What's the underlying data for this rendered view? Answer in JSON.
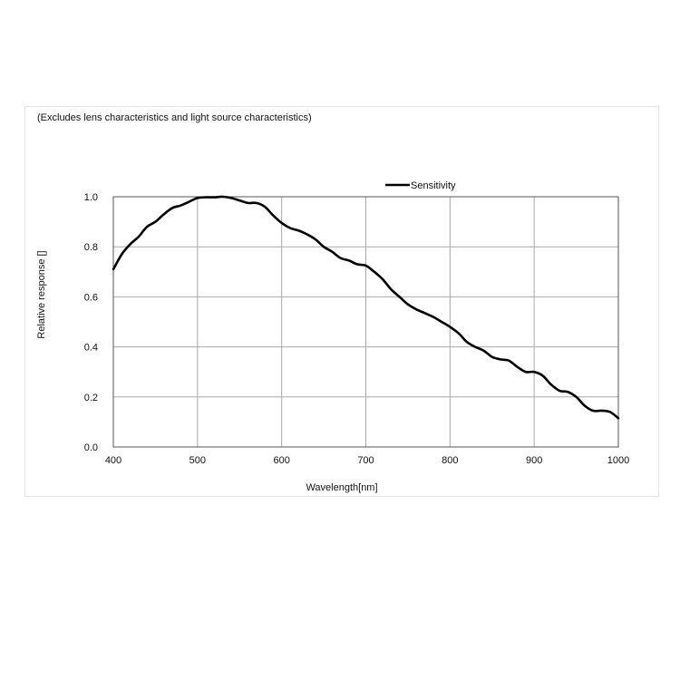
{
  "note": "(Excludes lens characteristics and light source characteristics)",
  "chart_data": {
    "type": "line",
    "xlabel": "Wavelength[nm]",
    "ylabel": "Relative response []",
    "xlim": [
      400,
      1000
    ],
    "ylim": [
      0.0,
      1.0
    ],
    "xticks": [
      "400",
      "500",
      "600",
      "700",
      "800",
      "900",
      "1000"
    ],
    "yticks": [
      "0.0",
      "0.2",
      "0.4",
      "0.6",
      "0.8",
      "1.0"
    ],
    "grid": true,
    "legend_position": "top-center",
    "series": [
      {
        "name": "Sensitivity",
        "color": "#000000",
        "x": [
          400,
          410,
          420,
          430,
          440,
          450,
          460,
          470,
          480,
          490,
          500,
          510,
          520,
          530,
          540,
          550,
          560,
          570,
          580,
          590,
          600,
          610,
          620,
          630,
          640,
          650,
          660,
          670,
          680,
          690,
          700,
          710,
          720,
          730,
          740,
          750,
          760,
          770,
          780,
          790,
          800,
          810,
          820,
          830,
          840,
          850,
          860,
          870,
          880,
          890,
          900,
          910,
          920,
          930,
          940,
          950,
          960,
          970,
          980,
          990,
          1000
        ],
        "y": [
          0.71,
          0.77,
          0.81,
          0.84,
          0.88,
          0.9,
          0.93,
          0.955,
          0.965,
          0.98,
          0.995,
          0.998,
          0.998,
          1.0,
          0.995,
          0.985,
          0.975,
          0.975,
          0.96,
          0.925,
          0.895,
          0.875,
          0.865,
          0.85,
          0.83,
          0.8,
          0.78,
          0.755,
          0.745,
          0.73,
          0.725,
          0.7,
          0.67,
          0.63,
          0.6,
          0.57,
          0.55,
          0.535,
          0.52,
          0.5,
          0.48,
          0.455,
          0.42,
          0.4,
          0.385,
          0.36,
          0.35,
          0.345,
          0.32,
          0.3,
          0.3,
          0.285,
          0.25,
          0.225,
          0.22,
          0.2,
          0.165,
          0.145,
          0.145,
          0.14,
          0.115
        ]
      }
    ]
  }
}
